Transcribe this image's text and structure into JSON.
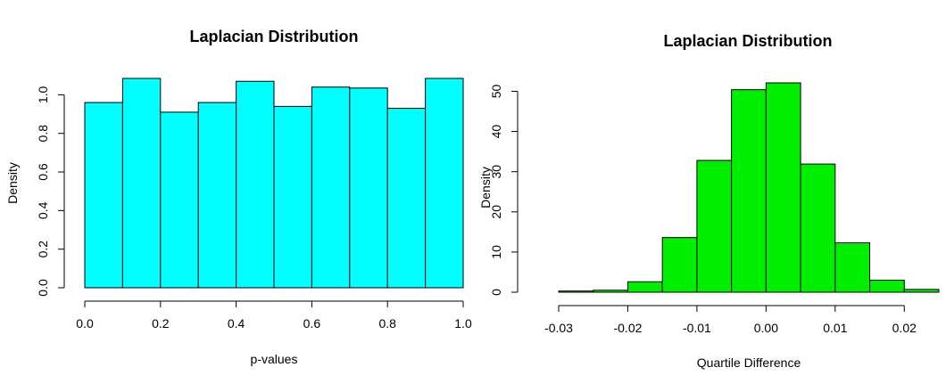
{
  "chart_data": [
    {
      "type": "bar",
      "title": "Laplacian Distribution",
      "xlabel": "p-values",
      "ylabel": "Density",
      "bar_color": "#00ffff",
      "breaks": [
        0.0,
        0.1,
        0.2,
        0.3,
        0.4,
        0.5,
        0.6,
        0.7,
        0.8,
        0.9,
        1.0
      ],
      "values": [
        0.96,
        1.085,
        0.91,
        0.96,
        1.07,
        0.94,
        1.04,
        1.035,
        0.93,
        1.085
      ],
      "xlim": [
        0.0,
        1.0
      ],
      "ylim": [
        0.0,
        1.085
      ],
      "xticks": [
        0.0,
        0.2,
        0.4,
        0.6,
        0.8,
        1.0
      ],
      "xtick_labels": [
        "0.0",
        "0.2",
        "0.4",
        "0.6",
        "0.8",
        "1.0"
      ],
      "yticks": [
        0.0,
        0.2,
        0.4,
        0.6,
        0.8,
        1.0
      ],
      "ytick_labels": [
        "0.0",
        "0.2",
        "0.4",
        "0.6",
        "0.8",
        "1.0"
      ],
      "grid": false
    },
    {
      "type": "bar",
      "title": "Laplacian Distribution",
      "xlabel": "Quartile Difference",
      "ylabel": "Density",
      "bar_color": "#00ee00",
      "breaks": [
        -0.03,
        -0.025,
        -0.02,
        -0.015,
        -0.01,
        -0.005,
        0.0,
        0.005,
        0.01,
        0.015,
        0.02,
        0.025
      ],
      "values": [
        0.3,
        0.5,
        2.6,
        13.6,
        32.8,
        50.4,
        52.1,
        31.9,
        12.3,
        3.0,
        0.7
      ],
      "xlim": [
        -0.03,
        0.025
      ],
      "ylim": [
        0,
        52.1
      ],
      "xticks": [
        -0.03,
        -0.02,
        -0.01,
        0.0,
        0.01,
        0.02
      ],
      "xtick_labels": [
        "-0.03",
        "-0.02",
        "-0.01",
        "0.00",
        "0.01",
        "0.02"
      ],
      "yticks": [
        0,
        10,
        20,
        30,
        40,
        50
      ],
      "ytick_labels": [
        "0",
        "10",
        "20",
        "30",
        "40",
        "50"
      ],
      "grid": false
    }
  ]
}
